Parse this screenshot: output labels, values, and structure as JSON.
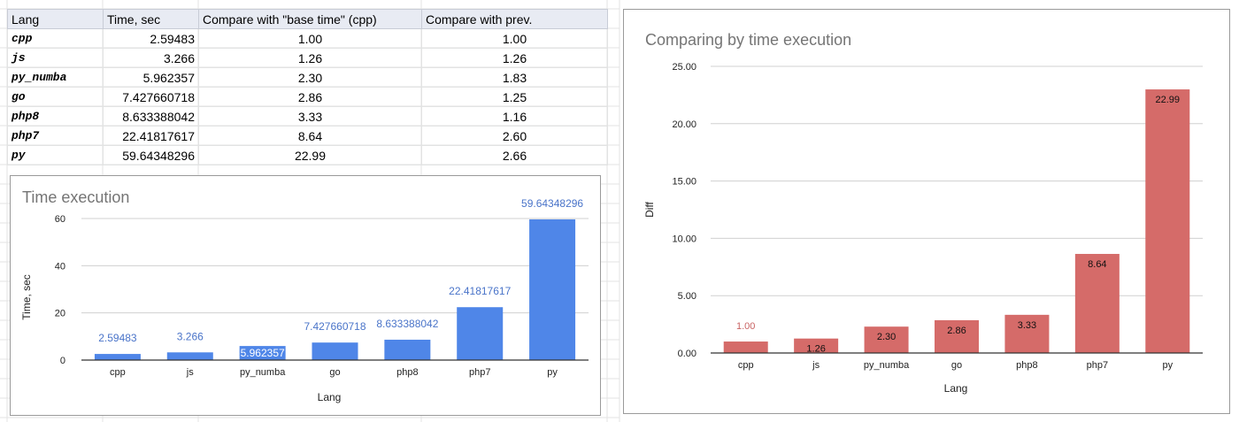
{
  "table": {
    "headers": [
      "Lang",
      "Time, sec",
      "Compare with \"base time\" (cpp)",
      "Compare with prev."
    ],
    "rows": [
      [
        "cpp",
        "2.59483",
        "1.00",
        "1.00"
      ],
      [
        "js",
        "3.266",
        "1.26",
        "1.26"
      ],
      [
        "py_numba",
        "5.962357",
        "2.30",
        "1.83"
      ],
      [
        "go",
        "7.427660718",
        "2.86",
        "1.25"
      ],
      [
        "php8",
        "8.633388042",
        "3.33",
        "1.16"
      ],
      [
        "php7",
        "22.41817617",
        "8.64",
        "2.60"
      ],
      [
        "py",
        "59.64348296",
        "22.99",
        "2.66"
      ]
    ]
  },
  "chart_data": [
    {
      "type": "bar",
      "title": "Time execution",
      "xlabel": "Lang",
      "ylabel": "Time, sec",
      "categories": [
        "cpp",
        "js",
        "py_numba",
        "go",
        "php8",
        "php7",
        "py"
      ],
      "values": [
        2.59483,
        3.266,
        5.962357,
        7.427660718,
        8.633388042,
        22.41817617,
        59.64348296
      ],
      "data_labels": [
        "2.59483",
        "3.266",
        "5.962357",
        "7.427660718",
        "8.633388042",
        "22.41817617",
        "59.64348296"
      ],
      "ylim": [
        0,
        60
      ],
      "yticks": [
        "0",
        "20",
        "40",
        "60"
      ],
      "grid": true,
      "color": "#4f86e8"
    },
    {
      "type": "bar",
      "title": "Comparing by time execution",
      "xlabel": "Lang",
      "ylabel": "Diff",
      "categories": [
        "cpp",
        "js",
        "py_numba",
        "go",
        "php8",
        "php7",
        "py"
      ],
      "values": [
        1.0,
        1.26,
        2.3,
        2.86,
        3.33,
        8.64,
        22.99
      ],
      "data_labels": [
        "1.00",
        "1.26",
        "2.30",
        "2.86",
        "3.33",
        "8.64",
        "22.99"
      ],
      "ylim": [
        0,
        25
      ],
      "yticks": [
        "0.00",
        "5.00",
        "10.00",
        "15.00",
        "20.00",
        "25.00"
      ],
      "grid": true,
      "color": "#d56b69"
    }
  ]
}
